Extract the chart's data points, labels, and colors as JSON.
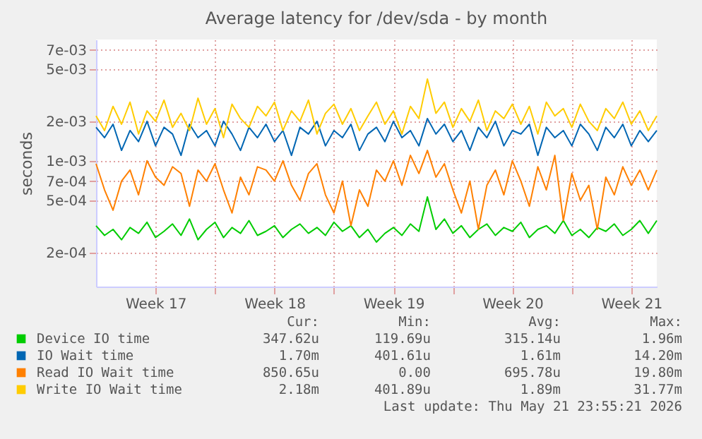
{
  "chart_data": {
    "type": "line",
    "title": "Average latency for /dev/sda - by month",
    "ylabel": "seconds",
    "x": [
      "2026-04-20T00:00",
      "2026-04-20T12:00",
      "2026-04-21T00:00",
      "2026-04-21T12:00",
      "2026-04-22T00:00",
      "2026-04-22T12:00",
      "2026-04-23T00:00",
      "2026-04-23T12:00",
      "2026-04-24T00:00",
      "2026-04-24T12:00",
      "2026-04-25T00:00",
      "2026-04-25T12:00",
      "2026-04-26T00:00",
      "2026-04-26T12:00",
      "2026-04-27T00:00",
      "2026-04-27T12:00",
      "2026-04-28T00:00",
      "2026-04-28T12:00",
      "2026-04-29T00:00",
      "2026-04-29T12:00",
      "2026-04-30T00:00",
      "2026-04-30T12:00",
      "2026-05-01T00:00",
      "2026-05-01T12:00",
      "2026-05-02T00:00",
      "2026-05-02T12:00",
      "2026-05-03T00:00",
      "2026-05-03T12:00",
      "2026-05-04T00:00",
      "2026-05-04T12:00",
      "2026-05-05T00:00",
      "2026-05-05T12:00",
      "2026-05-06T00:00",
      "2026-05-06T12:00",
      "2026-05-07T00:00",
      "2026-05-07T12:00",
      "2026-05-08T00:00",
      "2026-05-08T12:00",
      "2026-05-09T00:00",
      "2026-05-09T12:00",
      "2026-05-10T00:00",
      "2026-05-10T12:00",
      "2026-05-11T00:00",
      "2026-05-11T12:00",
      "2026-05-12T00:00",
      "2026-05-12T12:00",
      "2026-05-13T00:00",
      "2026-05-13T12:00",
      "2026-05-14T00:00",
      "2026-05-14T12:00",
      "2026-05-15T00:00",
      "2026-05-15T12:00",
      "2026-05-16T00:00",
      "2026-05-16T12:00",
      "2026-05-17T00:00",
      "2026-05-17T12:00",
      "2026-05-18T00:00",
      "2026-05-18T12:00",
      "2026-05-19T00:00",
      "2026-05-19T12:00",
      "2026-05-20T00:00",
      "2026-05-20T12:00",
      "2026-05-21T00:00",
      "2026-05-21T12:00",
      "2026-05-22T00:00",
      "2026-05-22T12:00",
      "2026-05-23T00:00"
    ],
    "xlim": [
      "2026-04-20",
      "2026-05-23"
    ],
    "xticks": [
      {
        "value": "2026-04-23T12:00",
        "label": "Week 17"
      },
      {
        "value": "2026-04-27",
        "label": null
      },
      {
        "value": "2026-04-30T12:00",
        "label": "Week 18"
      },
      {
        "value": "2026-05-04",
        "label": null
      },
      {
        "value": "2026-05-07T12:00",
        "label": "Week 19"
      },
      {
        "value": "2026-05-11",
        "label": null
      },
      {
        "value": "2026-05-14T12:00",
        "label": "Week 20"
      },
      {
        "value": "2026-05-18",
        "label": null
      },
      {
        "value": "2026-05-21T12:00",
        "label": "Week 21"
      }
    ],
    "ylim": [
      0.00011,
      0.0084
    ],
    "log": true,
    "yticks": [
      {
        "value": 0.0002,
        "label": "2e-04"
      },
      {
        "value": 0.0005,
        "label": "5e-04"
      },
      {
        "value": 0.0007,
        "label": "7e-04"
      },
      {
        "value": 0.001,
        "label": "1e-03"
      },
      {
        "value": 0.002,
        "label": "2e-03"
      },
      {
        "value": 0.005,
        "label": "5e-03"
      },
      {
        "value": 0.007,
        "label": "7e-03"
      }
    ],
    "grid": true,
    "legend": "bottom",
    "series": [
      {
        "name": "Device IO time",
        "color": "#00cc00",
        "values": [
          0.00032,
          0.00027,
          0.0003,
          0.00025,
          0.00031,
          0.00028,
          0.00034,
          0.00026,
          0.00029,
          0.00033,
          0.00027,
          0.00036,
          0.00025,
          0.0003,
          0.00034,
          0.00026,
          0.00031,
          0.00028,
          0.00035,
          0.00027,
          0.00029,
          0.00032,
          0.00026,
          0.0003,
          0.00033,
          0.00028,
          0.00031,
          0.00027,
          0.00034,
          0.00029,
          0.00032,
          0.00026,
          0.0003,
          0.00024,
          0.00028,
          0.00031,
          0.00027,
          0.00033,
          0.00029,
          0.00053,
          0.0003,
          0.00036,
          0.00028,
          0.00032,
          0.00026,
          0.0003,
          0.00033,
          0.00027,
          0.00031,
          0.00029,
          0.00034,
          0.00026,
          0.0003,
          0.00032,
          0.00028,
          0.00035,
          0.00027,
          0.0003,
          0.00026,
          0.00031,
          0.00029,
          0.00033,
          0.00027,
          0.0003,
          0.00035,
          0.00028,
          0.00035
        ]
      },
      {
        "name": "IO Wait time",
        "color": "#0066b3",
        "values": [
          0.0018,
          0.0015,
          0.0019,
          0.0012,
          0.0017,
          0.0014,
          0.002,
          0.0013,
          0.0018,
          0.0016,
          0.0011,
          0.0019,
          0.0015,
          0.0017,
          0.0013,
          0.002,
          0.0016,
          0.0012,
          0.0018,
          0.0015,
          0.0019,
          0.0014,
          0.0017,
          0.0011,
          0.0018,
          0.0016,
          0.002,
          0.0013,
          0.0017,
          0.0015,
          0.0019,
          0.0012,
          0.0016,
          0.0018,
          0.0014,
          0.002,
          0.0015,
          0.0017,
          0.0013,
          0.0021,
          0.0016,
          0.0019,
          0.0014,
          0.0017,
          0.0012,
          0.0018,
          0.0015,
          0.002,
          0.0013,
          0.0017,
          0.0016,
          0.0019,
          0.0011,
          0.0018,
          0.0015,
          0.0017,
          0.0013,
          0.0019,
          0.0016,
          0.0012,
          0.0018,
          0.0015,
          0.0019,
          0.0013,
          0.0017,
          0.0014,
          0.0017
        ]
      },
      {
        "name": "Read IO Wait time",
        "color": "#ff8000",
        "values": [
          0.00095,
          0.0006,
          0.00042,
          0.0007,
          0.00085,
          0.00055,
          0.001,
          0.00075,
          0.00065,
          0.0009,
          0.0008,
          0.00045,
          0.00085,
          0.0007,
          0.00095,
          0.0006,
          0.0004,
          0.00075,
          0.00055,
          0.0009,
          0.00085,
          0.0007,
          0.001,
          0.00065,
          0.0005,
          0.0008,
          0.00095,
          0.00055,
          0.0004,
          0.0007,
          0.00032,
          0.0006,
          0.00045,
          0.00085,
          0.0007,
          0.001,
          0.00065,
          0.0011,
          0.0008,
          0.0012,
          0.00075,
          0.00095,
          0.0006,
          0.0004,
          0.0007,
          0.0003,
          0.00065,
          0.00085,
          0.00055,
          0.001,
          0.0007,
          0.00045,
          0.0009,
          0.0006,
          0.0011,
          0.00035,
          0.0008,
          0.0005,
          0.00065,
          0.0003,
          0.00075,
          0.00055,
          0.0009,
          0.00065,
          0.00085,
          0.0006,
          0.00085
        ]
      },
      {
        "name": "Write IO Wait time",
        "color": "#ffcc00",
        "values": [
          0.0022,
          0.0017,
          0.0026,
          0.0019,
          0.0028,
          0.0016,
          0.0024,
          0.002,
          0.0029,
          0.0018,
          0.0023,
          0.0017,
          0.003,
          0.0019,
          0.0025,
          0.0015,
          0.0027,
          0.0021,
          0.0018,
          0.0026,
          0.0022,
          0.0028,
          0.0017,
          0.0024,
          0.002,
          0.0029,
          0.0016,
          0.0023,
          0.0027,
          0.0019,
          0.0025,
          0.0017,
          0.0022,
          0.0028,
          0.0019,
          0.0024,
          0.0016,
          0.0026,
          0.0021,
          0.0042,
          0.0023,
          0.0028,
          0.0018,
          0.0025,
          0.002,
          0.0029,
          0.0017,
          0.0024,
          0.0021,
          0.0027,
          0.0019,
          0.0026,
          0.0016,
          0.0028,
          0.0022,
          0.0025,
          0.0018,
          0.0027,
          0.002,
          0.0017,
          0.0025,
          0.0021,
          0.0028,
          0.0019,
          0.0024,
          0.0017,
          0.0022
        ]
      }
    ],
    "annotations": [
      "Cur:",
      "Min:",
      "Avg:",
      "Max:",
      "347.62u",
      "119.69u",
      "315.14u",
      "1.96m",
      "1.70m",
      "401.61u",
      "1.61m",
      "14.20m",
      "850.65u",
      "0.00",
      "695.78u",
      "19.80m",
      "2.18m",
      "401.89u",
      "1.89m",
      "31.77m",
      "Last update: Thu May 21 23:55:21 2026"
    ]
  }
}
